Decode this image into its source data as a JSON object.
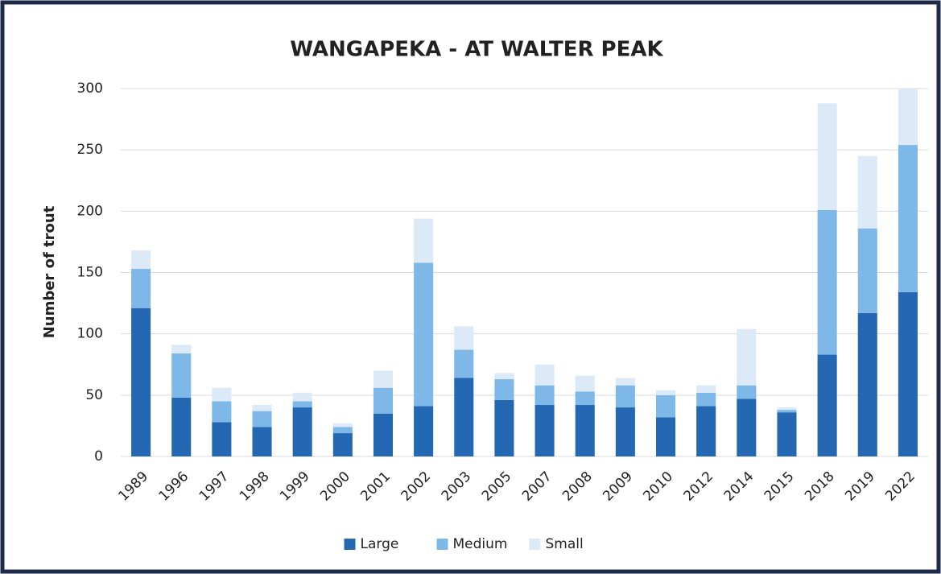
{
  "chart_data": {
    "type": "stacked_bar",
    "title": "WANGAPEKA - AT WALTER PEAK",
    "y_label": "Number of trout",
    "categories": [
      "1989",
      "1996",
      "1997",
      "1998",
      "1999",
      "2000",
      "2001",
      "2002",
      "2003",
      "2005",
      "2007",
      "2008",
      "2009",
      "2010",
      "2012",
      "2014",
      "2015",
      "2018",
      "2019",
      "2022"
    ],
    "series": [
      {
        "name": "Large",
        "color": "#2468b4",
        "values": [
          121,
          48,
          28,
          24,
          40,
          19,
          35,
          41,
          64,
          46,
          42,
          42,
          40,
          32,
          41,
          47,
          36,
          83,
          117,
          134
        ]
      },
      {
        "name": "Medium",
        "color": "#7db8e8",
        "values": [
          32,
          36,
          17,
          13,
          5,
          5,
          21,
          117,
          23,
          17,
          16,
          11,
          18,
          18,
          11,
          11,
          2,
          118,
          69,
          120
        ]
      },
      {
        "name": "Small",
        "color": "#dce9f6",
        "values": [
          15,
          7,
          11,
          5,
          7,
          3,
          14,
          36,
          19,
          5,
          17,
          13,
          6,
          4,
          6,
          46,
          2,
          87,
          59,
          46
        ]
      }
    ],
    "ylim": [
      0,
      300
    ],
    "yticks": [
      0,
      50,
      100,
      150,
      200,
      250,
      300
    ],
    "grid": true,
    "legend": "bottom"
  }
}
